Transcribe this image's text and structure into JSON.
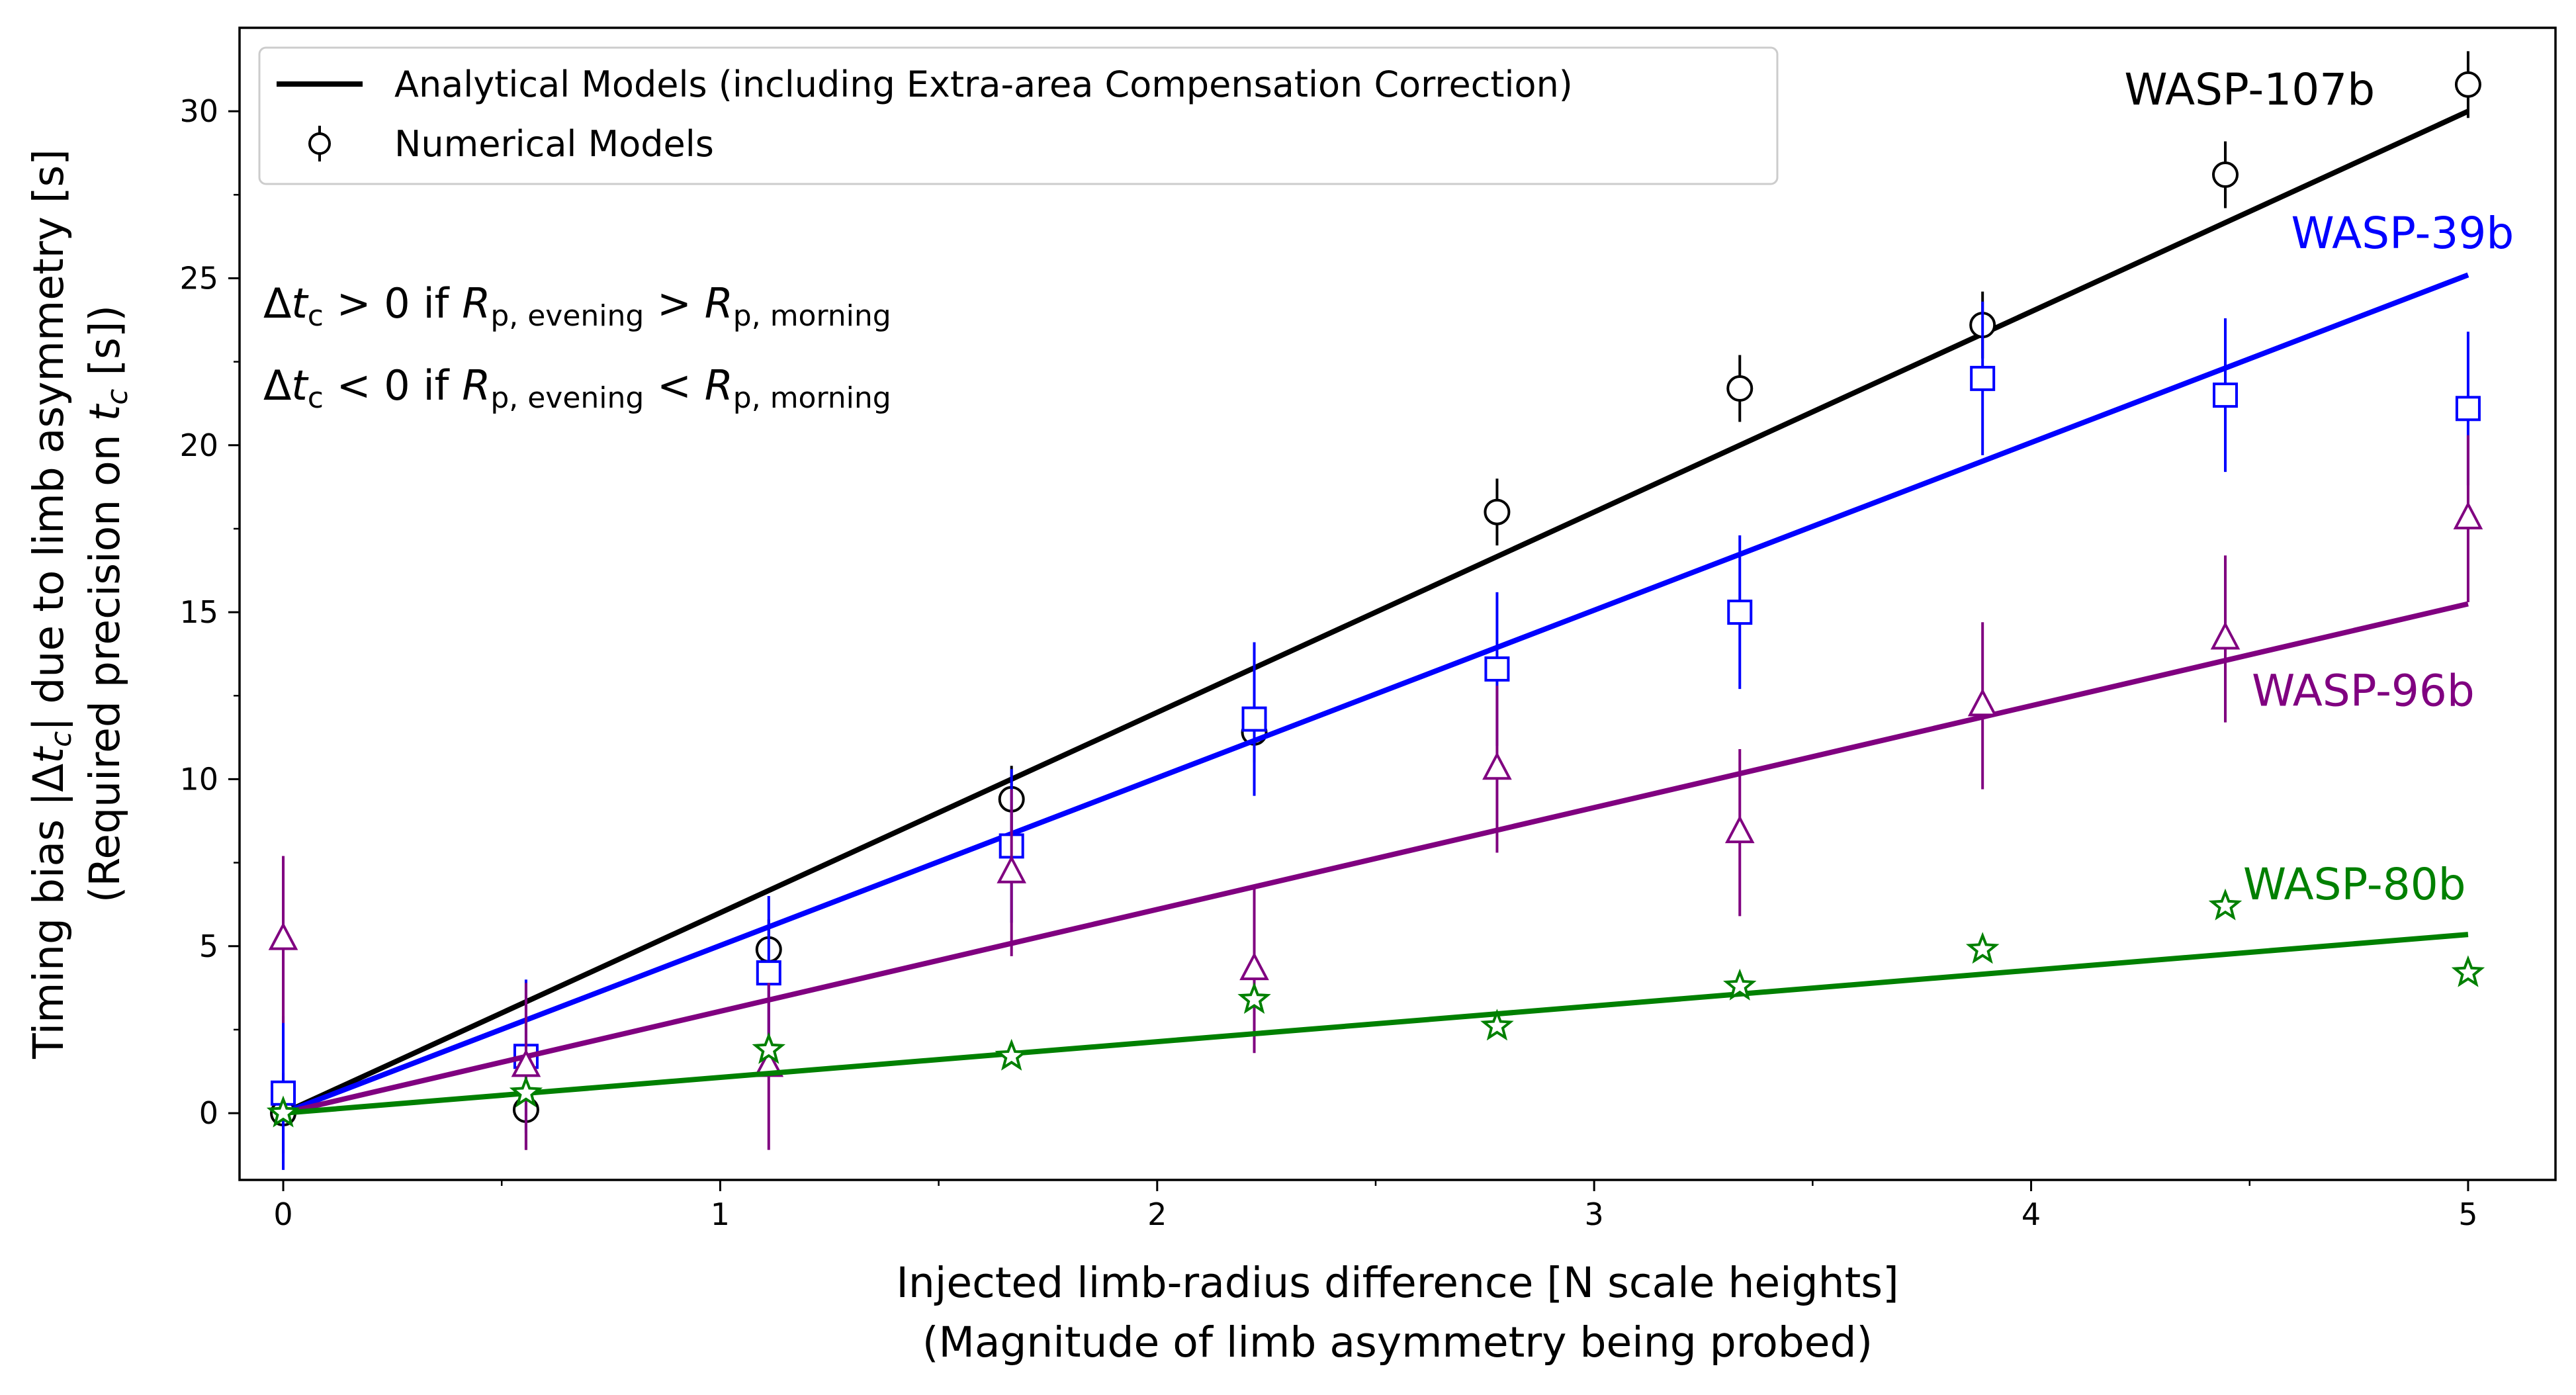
{
  "chart_data": {
    "type": "line",
    "xlabel_lines": [
      "Injected limb-radius difference [N scale heights]",
      "(Magnitude of limb asymmetry being probed)"
    ],
    "ylabel_lines": [
      "Timing bias |Δt",
      "c",
      "| due to limb asymmetry [s]",
      "(Required precision on ",
      "t",
      "c",
      " [s])"
    ],
    "xlim": [
      -0.1,
      5.2
    ],
    "ylim": [
      -2,
      32.5
    ],
    "xticks": [
      0,
      1,
      2,
      3,
      4,
      5
    ],
    "yticks": [
      0,
      5,
      10,
      15,
      20,
      25,
      30
    ],
    "grid": false,
    "legend": {
      "placement": "top-left",
      "entries": [
        {
          "label": "Analytical Models (including Extra-area Compensation Correction)",
          "kind": "line"
        },
        {
          "label": "Numerical Models",
          "kind": "marker"
        }
      ]
    },
    "annotations": [
      {
        "parts": [
          "Δ",
          "t",
          "c",
          "  >  0 if ",
          "R",
          "p, evening",
          " > ",
          "R",
          "p, morning"
        ]
      },
      {
        "parts": [
          "Δ",
          "t",
          "c",
          "  <  0 if ",
          "R",
          "p, evening",
          " < ",
          "R",
          "p, morning"
        ]
      }
    ],
    "x_points": [
      0,
      0.5556,
      1.1111,
      1.6667,
      2.2222,
      2.7778,
      3.3333,
      3.8889,
      4.4444,
      5.0
    ],
    "series": [
      {
        "name": "WASP-107b",
        "color": "#000000",
        "marker": "circle",
        "slope": 6.0,
        "values": [
          0.0,
          0.1,
          4.9,
          9.4,
          11.4,
          18.0,
          21.7,
          23.6,
          28.1,
          30.8
        ],
        "errors": [
          1.2,
          1.2,
          0.9,
          1.0,
          0.9,
          1.0,
          1.0,
          1.0,
          1.0,
          1.0
        ]
      },
      {
        "name": "WASP-39b",
        "color": "#0000ff",
        "marker": "square",
        "slope": 5.02,
        "values": [
          0.6,
          1.7,
          4.2,
          8.0,
          11.8,
          13.3,
          15.0,
          22.0,
          21.5,
          21.1
        ],
        "errors": [
          2.3,
          2.3,
          2.3,
          2.3,
          2.3,
          2.3,
          2.3,
          2.3,
          2.3,
          2.3
        ]
      },
      {
        "name": "WASP-96b",
        "color": "#800080",
        "marker": "triangle",
        "slope": 3.05,
        "values": [
          5.2,
          1.4,
          1.4,
          7.2,
          4.3,
          10.3,
          8.4,
          12.2,
          14.2,
          17.8
        ],
        "errors": [
          2.5,
          2.5,
          2.5,
          2.5,
          2.5,
          2.5,
          2.5,
          2.5,
          2.5,
          2.5
        ]
      },
      {
        "name": "WASP-80b",
        "color": "#008000",
        "marker": "star",
        "slope": 1.07,
        "values": [
          0.0,
          0.6,
          1.9,
          1.7,
          3.4,
          2.6,
          3.8,
          4.9,
          6.2,
          4.2
        ],
        "errors": [
          0.2,
          0.2,
          0.2,
          0.2,
          0.2,
          0.2,
          0.2,
          0.2,
          0.2,
          0.2
        ]
      }
    ],
    "series_labels": [
      {
        "name": "WASP-107b",
        "x": 4.5,
        "y": 30.2
      },
      {
        "name": "WASP-39b",
        "x": 4.85,
        "y": 25.9
      },
      {
        "name": "WASP-96b",
        "x": 4.76,
        "y": 12.2
      },
      {
        "name": "WASP-80b",
        "x": 4.74,
        "y": 6.4
      }
    ]
  }
}
